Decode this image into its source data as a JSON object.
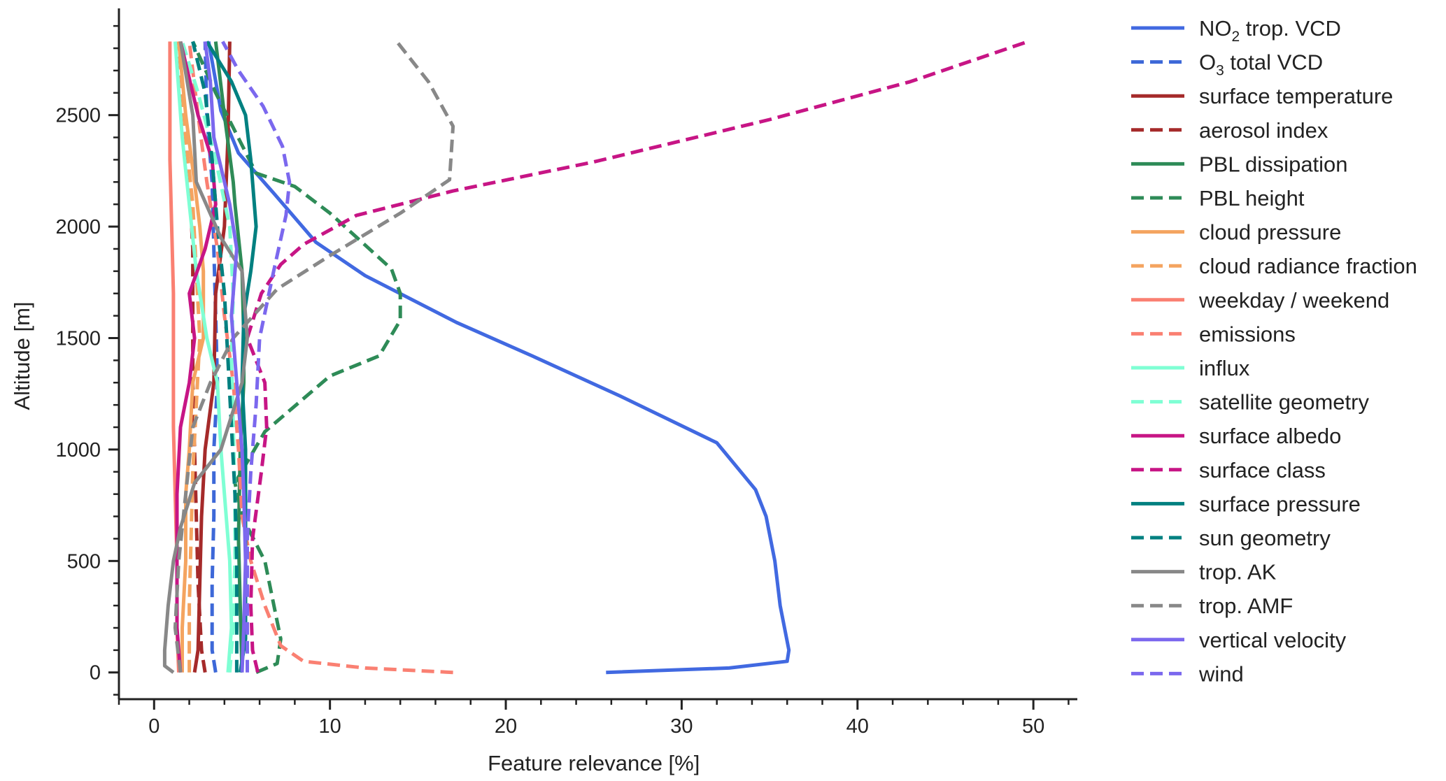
{
  "chart_data": {
    "type": "line",
    "xlabel": "Feature relevance [%]",
    "ylabel": "Altitude [m]",
    "xlim": [
      -2,
      52.5
    ],
    "ylim": [
      -120,
      2960
    ],
    "xticks": [
      0,
      10,
      20,
      30,
      40,
      50
    ],
    "yticks": [
      0,
      500,
      1000,
      1500,
      2000,
      2500
    ],
    "grid": false,
    "legend_position": "outside-right",
    "series": [
      {
        "name": "NO2 trop. VCD",
        "name_main": "NO",
        "name_sub": "2",
        "name_rest": " trop. VCD",
        "color": "#4169e1",
        "dash": "solid",
        "points": [
          [
            25.7,
            0
          ],
          [
            32.7,
            20
          ],
          [
            36.0,
            50
          ],
          [
            36.1,
            100
          ],
          [
            35.6,
            300
          ],
          [
            35.3,
            500
          ],
          [
            34.8,
            700
          ],
          [
            34.2,
            820
          ],
          [
            32.0,
            1030
          ],
          [
            26.5,
            1240
          ],
          [
            21.5,
            1420
          ],
          [
            17.2,
            1570
          ],
          [
            12.0,
            1780
          ],
          [
            9.2,
            1930
          ],
          [
            6.8,
            2150
          ],
          [
            4.8,
            2330
          ],
          [
            3.8,
            2520
          ],
          [
            3.1,
            2830
          ]
        ]
      },
      {
        "name": "O3 total VCD",
        "name_main": "O",
        "name_sub": "3",
        "name_rest": " total VCD",
        "color": "#3d68d8",
        "dash": "dashed",
        "points": [
          [
            3.5,
            0
          ],
          [
            3.3,
            100
          ],
          [
            3.3,
            400
          ],
          [
            3.4,
            700
          ],
          [
            3.4,
            1000
          ],
          [
            3.6,
            1300
          ],
          [
            3.5,
            1600
          ],
          [
            3.4,
            1900
          ],
          [
            3.3,
            2200
          ],
          [
            3.0,
            2500
          ],
          [
            2.9,
            2830
          ]
        ]
      },
      {
        "name": "surface temperature",
        "color": "#a52a2a",
        "dash": "solid",
        "points": [
          [
            2.3,
            0
          ],
          [
            2.5,
            100
          ],
          [
            2.6,
            400
          ],
          [
            2.7,
            700
          ],
          [
            2.9,
            1000
          ],
          [
            3.4,
            1300
          ],
          [
            3.5,
            1700
          ],
          [
            4.0,
            2000
          ],
          [
            4.2,
            2400
          ],
          [
            4.3,
            2830
          ]
        ]
      },
      {
        "name": "aerosol index",
        "color": "#a52a2a",
        "dash": "dashed",
        "points": [
          [
            2.9,
            0
          ],
          [
            2.7,
            100
          ],
          [
            2.5,
            400
          ],
          [
            2.4,
            700
          ],
          [
            2.3,
            1000
          ],
          [
            2.2,
            1300
          ],
          [
            2.2,
            1600
          ],
          [
            2.2,
            1900
          ],
          [
            2.0,
            2200
          ],
          [
            1.7,
            2500
          ],
          [
            1.4,
            2830
          ]
        ]
      },
      {
        "name": "PBL dissipation",
        "color": "#2e8b57",
        "dash": "solid",
        "points": [
          [
            5.0,
            0
          ],
          [
            4.9,
            300
          ],
          [
            4.8,
            600
          ],
          [
            4.9,
            1000
          ],
          [
            5.1,
            1300
          ],
          [
            5.1,
            1500
          ],
          [
            5.0,
            1800
          ],
          [
            4.6,
            2100
          ],
          [
            4.5,
            2200
          ],
          [
            4.0,
            2500
          ],
          [
            3.5,
            2830
          ]
        ]
      },
      {
        "name": "PBL height",
        "color": "#2e8b57",
        "dash": "dashed",
        "points": [
          [
            5.8,
            0
          ],
          [
            7.0,
            40
          ],
          [
            7.2,
            150
          ],
          [
            6.3,
            500
          ],
          [
            5.0,
            700
          ],
          [
            4.6,
            850
          ],
          [
            6.3,
            1080
          ],
          [
            10.0,
            1330
          ],
          [
            12.8,
            1420
          ],
          [
            14.0,
            1580
          ],
          [
            14.0,
            1700
          ],
          [
            13.5,
            1810
          ],
          [
            10.0,
            2060
          ],
          [
            8.0,
            2180
          ],
          [
            5.8,
            2240
          ],
          [
            3.5,
            2600
          ],
          [
            2.2,
            2830
          ]
        ]
      },
      {
        "name": "cloud pressure",
        "color": "#f4a460",
        "dash": "solid",
        "points": [
          [
            1.6,
            0
          ],
          [
            1.6,
            200
          ],
          [
            1.8,
            500
          ],
          [
            1.8,
            800
          ],
          [
            2.0,
            1000
          ],
          [
            2.2,
            1300
          ],
          [
            2.8,
            1500
          ],
          [
            2.8,
            1800
          ],
          [
            2.6,
            2000
          ],
          [
            2.3,
            2200
          ],
          [
            1.8,
            2500
          ],
          [
            1.4,
            2830
          ]
        ]
      },
      {
        "name": "cloud radiance fraction",
        "color": "#f4a460",
        "dash": "dashed",
        "points": [
          [
            2.0,
            0
          ],
          [
            2.0,
            300
          ],
          [
            2.1,
            600
          ],
          [
            2.2,
            900
          ],
          [
            2.4,
            1200
          ],
          [
            2.6,
            1500
          ],
          [
            2.4,
            1800
          ],
          [
            2.2,
            2100
          ],
          [
            1.8,
            2400
          ],
          [
            1.4,
            2830
          ]
        ]
      },
      {
        "name": "weekday / weekend",
        "color": "#fa8072",
        "dash": "solid",
        "points": [
          [
            1.4,
            0
          ],
          [
            1.3,
            200
          ],
          [
            1.3,
            500
          ],
          [
            1.2,
            800
          ],
          [
            1.1,
            1100
          ],
          [
            1.1,
            1400
          ],
          [
            1.1,
            1700
          ],
          [
            1.0,
            2000
          ],
          [
            0.9,
            2300
          ],
          [
            0.9,
            2600
          ],
          [
            0.9,
            2830
          ]
        ]
      },
      {
        "name": "emissions",
        "color": "#fa8072",
        "dash": "dashed",
        "points": [
          [
            17.0,
            0
          ],
          [
            12.0,
            20
          ],
          [
            8.5,
            50
          ],
          [
            7.2,
            120
          ],
          [
            6.3,
            300
          ],
          [
            5.5,
            500
          ],
          [
            5.0,
            700
          ],
          [
            4.8,
            1000
          ],
          [
            4.5,
            1300
          ],
          [
            4.0,
            1600
          ],
          [
            3.6,
            1900
          ],
          [
            3.0,
            2200
          ],
          [
            2.5,
            2500
          ],
          [
            2.0,
            2830
          ]
        ]
      },
      {
        "name": "influx",
        "color": "#7fffd4",
        "dash": "solid",
        "points": [
          [
            4.2,
            0
          ],
          [
            4.4,
            200
          ],
          [
            4.3,
            500
          ],
          [
            4.0,
            800
          ],
          [
            3.8,
            1000
          ],
          [
            3.6,
            1300
          ],
          [
            3.0,
            1500
          ],
          [
            2.4,
            1800
          ],
          [
            2.0,
            2100
          ],
          [
            1.6,
            2400
          ],
          [
            1.2,
            2830
          ]
        ]
      },
      {
        "name": "satellite geometry",
        "color": "#7fffd4",
        "dash": "dashed",
        "points": [
          [
            4.3,
            0
          ],
          [
            4.5,
            200
          ],
          [
            4.6,
            500
          ],
          [
            4.6,
            800
          ],
          [
            4.5,
            1100
          ],
          [
            4.4,
            1400
          ],
          [
            4.5,
            1700
          ],
          [
            4.3,
            2000
          ],
          [
            3.5,
            2300
          ],
          [
            2.5,
            2600
          ],
          [
            1.6,
            2830
          ]
        ]
      },
      {
        "name": "surface albedo",
        "color": "#c71585",
        "dash": "solid",
        "points": [
          [
            1.5,
            0
          ],
          [
            1.3,
            200
          ],
          [
            1.3,
            500
          ],
          [
            1.3,
            800
          ],
          [
            1.5,
            1100
          ],
          [
            2.0,
            1300
          ],
          [
            2.3,
            1500
          ],
          [
            2.0,
            1700
          ],
          [
            2.9,
            1900
          ],
          [
            3.5,
            2100
          ],
          [
            3.3,
            2300
          ],
          [
            2.5,
            2500
          ],
          [
            1.5,
            2830
          ]
        ]
      },
      {
        "name": "surface class",
        "color": "#c71585",
        "dash": "dashed",
        "points": [
          [
            5.9,
            0
          ],
          [
            5.6,
            100
          ],
          [
            5.5,
            300
          ],
          [
            5.6,
            600
          ],
          [
            6.1,
            900
          ],
          [
            6.4,
            1100
          ],
          [
            6.3,
            1300
          ],
          [
            5.3,
            1500
          ],
          [
            6.1,
            1700
          ],
          [
            7.2,
            1830
          ],
          [
            8.5,
            1920
          ],
          [
            11.5,
            2050
          ],
          [
            17.0,
            2160
          ],
          [
            25.0,
            2290
          ],
          [
            35.0,
            2480
          ],
          [
            43.0,
            2650
          ],
          [
            49.7,
            2830
          ]
        ]
      },
      {
        "name": "surface pressure",
        "color": "#008080",
        "dash": "solid",
        "points": [
          [
            4.9,
            0
          ],
          [
            5.2,
            150
          ],
          [
            5.2,
            400
          ],
          [
            5.2,
            700
          ],
          [
            5.2,
            1000
          ],
          [
            5.0,
            1300
          ],
          [
            5.1,
            1600
          ],
          [
            5.5,
            1800
          ],
          [
            5.8,
            2000
          ],
          [
            5.5,
            2300
          ],
          [
            5.2,
            2500
          ],
          [
            4.4,
            2650
          ],
          [
            3.0,
            2830
          ]
        ]
      },
      {
        "name": "sun geometry",
        "color": "#008080",
        "dash": "dashed",
        "points": [
          [
            4.7,
            0
          ],
          [
            4.7,
            200
          ],
          [
            4.7,
            500
          ],
          [
            4.6,
            800
          ],
          [
            4.4,
            1100
          ],
          [
            4.2,
            1400
          ],
          [
            4.0,
            1700
          ],
          [
            3.6,
            2000
          ],
          [
            3.3,
            2300
          ],
          [
            2.9,
            2600
          ],
          [
            2.2,
            2830
          ]
        ]
      },
      {
        "name": "trop. AK",
        "color": "#888888",
        "dash": "solid",
        "points": [
          [
            1.1,
            0
          ],
          [
            0.6,
            30
          ],
          [
            0.6,
            100
          ],
          [
            0.8,
            300
          ],
          [
            1.1,
            500
          ],
          [
            1.5,
            650
          ],
          [
            2.3,
            850
          ],
          [
            3.8,
            1000
          ],
          [
            5.0,
            1300
          ],
          [
            5.3,
            1500
          ],
          [
            5.0,
            1800
          ],
          [
            3.8,
            1950
          ],
          [
            2.4,
            2200
          ],
          [
            2.2,
            2500
          ],
          [
            1.5,
            2830
          ]
        ]
      },
      {
        "name": "trop. AMF",
        "color": "#888888",
        "dash": "dashed",
        "points": [
          [
            1.5,
            0
          ],
          [
            1.2,
            200
          ],
          [
            1.4,
            500
          ],
          [
            1.8,
            800
          ],
          [
            2.2,
            1100
          ],
          [
            3.2,
            1300
          ],
          [
            4.5,
            1500
          ],
          [
            7.0,
            1720
          ],
          [
            10.0,
            1870
          ],
          [
            14.0,
            2060
          ],
          [
            16.8,
            2210
          ],
          [
            17.0,
            2450
          ],
          [
            15.6,
            2650
          ],
          [
            13.8,
            2830
          ]
        ]
      },
      {
        "name": "vertical velocity",
        "color": "#7b68ee",
        "dash": "solid",
        "points": [
          [
            5.0,
            0
          ],
          [
            5.1,
            200
          ],
          [
            5.2,
            500
          ],
          [
            5.1,
            800
          ],
          [
            5.0,
            1000
          ],
          [
            4.7,
            1300
          ],
          [
            4.4,
            1600
          ],
          [
            4.7,
            1900
          ],
          [
            4.3,
            2100
          ],
          [
            3.4,
            2400
          ],
          [
            3.2,
            2650
          ],
          [
            2.9,
            2830
          ]
        ]
      },
      {
        "name": "wind",
        "color": "#7b68ee",
        "dash": "dashed",
        "points": [
          [
            5.3,
            0
          ],
          [
            5.3,
            300
          ],
          [
            5.3,
            600
          ],
          [
            5.5,
            900
          ],
          [
            5.8,
            1200
          ],
          [
            6.0,
            1500
          ],
          [
            6.8,
            1800
          ],
          [
            7.5,
            2050
          ],
          [
            7.7,
            2200
          ],
          [
            7.3,
            2360
          ],
          [
            6.2,
            2540
          ],
          [
            4.8,
            2700
          ],
          [
            3.9,
            2830
          ]
        ]
      }
    ]
  }
}
